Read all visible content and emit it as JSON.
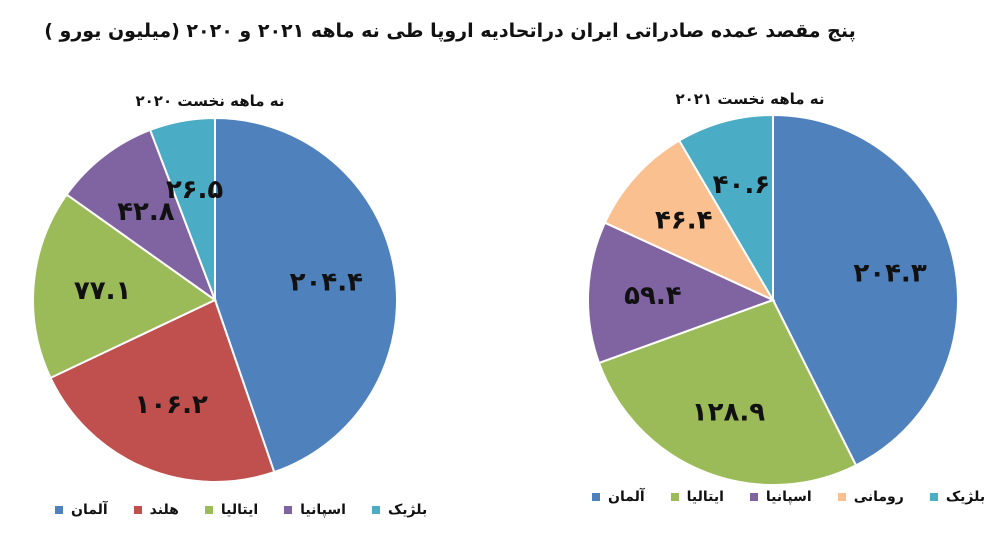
{
  "title": "پنج مقصد عمده صادراتی ایران دراتحادیه اروپا طی نه ماهه ۲۰۲۱ و ۲۰۲۰ (میلیون یورو )",
  "chart_data": [
    {
      "type": "pie",
      "title": "نه ماهه نخست ۲۰۲۰",
      "categories": [
        "آلمان",
        "هلند",
        "ایتالیا",
        "اسپانیا",
        "بلژیک"
      ],
      "values": [
        204.4,
        106.2,
        77.1,
        42.8,
        26.5
      ],
      "value_labels": [
        "۲۰۴.۴",
        "۱۰۶.۲",
        "۷۷.۱",
        "۴۲.۸",
        "۲۶.۵"
      ],
      "colors": [
        "#4f81bd",
        "#c0504d",
        "#9bbb59",
        "#8064a2",
        "#4bacc6"
      ],
      "legend": "bottom"
    },
    {
      "type": "pie",
      "title": "نه ماهه نخست ۲۰۲۱",
      "categories": [
        "آلمان",
        "ایتالیا",
        "اسپانیا",
        "رومانی",
        "بلژیک"
      ],
      "values": [
        204.3,
        128.9,
        59.4,
        46.4,
        40.6
      ],
      "value_labels": [
        "۲۰۴.۳",
        "۱۲۸.۹",
        "۵۹.۴",
        "۴۶.۴",
        "۴۰.۶"
      ],
      "colors": [
        "#4f81bd",
        "#9bbb59",
        "#8064a2",
        "#fac090",
        "#4bacc6"
      ],
      "legend": "bottom"
    }
  ]
}
